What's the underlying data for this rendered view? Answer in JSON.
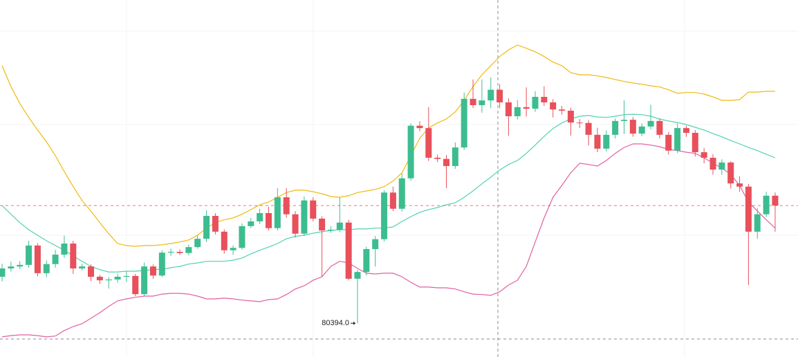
{
  "chart_data": {
    "type": "candlestick",
    "ylim": [
      79540,
      88570
    ],
    "up_color": "#3dbd8f",
    "down_color": "#e8505b",
    "open": [
      81570,
      81780,
      81830,
      81870,
      82360,
      81660,
      81890,
      82130,
      82410,
      81780,
      81830,
      81570,
      81480,
      81500,
      81570,
      81590,
      81130,
      81830,
      81600,
      82180,
      82200,
      82170,
      82320,
      82530,
      83110,
      82710,
      82240,
      82300,
      82850,
      82970,
      83180,
      82800,
      83580,
      83150,
      82660,
      83500,
      83040,
      82740,
      82760,
      82940,
      81520,
      81690,
      82270,
      82520,
      83700,
      83290,
      84060,
      85390,
      85330,
      84580,
      84550,
      84370,
      84840,
      86070,
      85910,
      86030,
      86300,
      85980,
      85630,
      85860,
      85820,
      86120,
      85980,
      85800,
      85770,
      85470,
      85460,
      85160,
      84810,
      85160,
      85510,
      85540,
      85190,
      85370,
      85510,
      85160,
      84760,
      85330,
      85210,
      84720,
      84580,
      84280,
      84460,
      83930,
      83850,
      82710,
      83150,
      83620
    ],
    "high": [
      81900,
      81950,
      81960,
      82480,
      82420,
      81980,
      82250,
      82610,
      82480,
      81900,
      81880,
      81620,
      81560,
      81650,
      81700,
      81640,
      81930,
      81880,
      82240,
      82280,
      82260,
      82380,
      82620,
      83250,
      83180,
      82770,
      82360,
      82920,
      83060,
      83290,
      83340,
      83810,
      83810,
      83230,
      83600,
      83580,
      83100,
      82850,
      83580,
      83010,
      81740,
      82330,
      82600,
      83760,
      83850,
      84180,
      85450,
      85500,
      85860,
      84660,
      84650,
      84970,
      86230,
      86560,
      86560,
      86610,
      86440,
      86080,
      86040,
      86360,
      86260,
      86390,
      86060,
      85890,
      85850,
      85560,
      85530,
      85340,
      85270,
      85570,
      86030,
      85610,
      85450,
      85920,
      85570,
      85230,
      85450,
      85390,
      85280,
      84830,
      84670,
      84540,
      84490,
      84110,
      83920,
      83310,
      83720,
      83700
    ],
    "low": [
      81450,
      81700,
      81760,
      81800,
      81580,
      81560,
      81800,
      82050,
      81640,
      81730,
      81460,
      81390,
      81270,
      81420,
      81440,
      81080,
      81080,
      81520,
      81560,
      82100,
      82120,
      82110,
      82280,
      82450,
      82640,
      82150,
      82130,
      82260,
      82800,
      82900,
      82740,
      82740,
      83060,
      82560,
      82600,
      82970,
      81570,
      82680,
      82700,
      81480,
      80394,
      81600,
      81830,
      82460,
      83230,
      83220,
      84000,
      85250,
      84500,
      84470,
      83810,
      84300,
      84780,
      85840,
      85720,
      85840,
      85830,
      85140,
      85550,
      85620,
      85740,
      85890,
      85600,
      85670,
      85140,
      85330,
      84890,
      84720,
      84740,
      85070,
      85180,
      85110,
      85130,
      85300,
      85070,
      84660,
      84700,
      85110,
      84610,
      84440,
      84150,
      84150,
      83800,
      83720,
      81360,
      82530,
      83080,
      82710
    ],
    "close": [
      81780,
      81830,
      81870,
      82360,
      81660,
      81890,
      82130,
      82410,
      81780,
      81830,
      81570,
      81480,
      81500,
      81570,
      81590,
      81130,
      81830,
      81600,
      82180,
      82200,
      82170,
      82320,
      82530,
      83110,
      82710,
      82240,
      82300,
      82850,
      82970,
      83180,
      82800,
      83580,
      83150,
      82660,
      83500,
      83040,
      82740,
      82760,
      82940,
      81520,
      81690,
      82270,
      82520,
      83700,
      83290,
      84060,
      85390,
      85330,
      84580,
      84550,
      84370,
      84840,
      86070,
      85910,
      86030,
      86300,
      85980,
      85630,
      85860,
      85820,
      86120,
      85980,
      85800,
      85770,
      85470,
      85460,
      85160,
      84810,
      85160,
      85510,
      85540,
      85190,
      85370,
      85510,
      85160,
      84760,
      85330,
      85210,
      84720,
      84580,
      84280,
      84460,
      83930,
      83850,
      82710,
      83150,
      83620,
      83370
    ],
    "series": [
      {
        "color": "#f0b90b",
        "values": [
          86910,
          86380,
          85950,
          85600,
          85280,
          84980,
          84630,
          84230,
          83850,
          83500,
          83230,
          82940,
          82660,
          82410,
          82360,
          82340,
          82360,
          82360,
          82380,
          82410,
          82450,
          82500,
          82620,
          82800,
          82940,
          83010,
          83060,
          83150,
          83270,
          83390,
          83460,
          83580,
          83700,
          83760,
          83760,
          83720,
          83670,
          83600,
          83580,
          83620,
          83700,
          83740,
          83780,
          83850,
          83990,
          84200,
          84630,
          85070,
          85330,
          85460,
          85560,
          85740,
          86030,
          86380,
          86680,
          86910,
          87140,
          87310,
          87430,
          87350,
          87260,
          87140,
          87000,
          86910,
          86730,
          86680,
          86680,
          86650,
          86610,
          86560,
          86510,
          86470,
          86440,
          86400,
          86370,
          86300,
          86210,
          86230,
          86230,
          86190,
          86120,
          86030,
          86030,
          86050,
          86240,
          86240,
          86260,
          86260
        ]
      },
      {
        "color": "#4fd1b5",
        "values": [
          83370,
          83150,
          82940,
          82760,
          82620,
          82480,
          82360,
          82240,
          82100,
          81960,
          81830,
          81750,
          81690,
          81690,
          81710,
          81710,
          81730,
          81750,
          81760,
          81800,
          81830,
          81890,
          81920,
          81960,
          81960,
          81960,
          81990,
          82040,
          82150,
          82240,
          82320,
          82410,
          82530,
          82590,
          82620,
          82670,
          82710,
          82740,
          82760,
          82760,
          82780,
          82780,
          82800,
          82800,
          82830,
          82970,
          83090,
          83200,
          83270,
          83320,
          83390,
          83440,
          83580,
          83740,
          83920,
          84090,
          84270,
          84410,
          84510,
          84690,
          84900,
          85120,
          85320,
          85460,
          85560,
          85630,
          85650,
          85610,
          85600,
          85630,
          85670,
          85680,
          85670,
          85630,
          85560,
          85510,
          85470,
          85420,
          85350,
          85280,
          85190,
          85110,
          85020,
          84930,
          84840,
          84760,
          84670,
          84580
        ]
      },
      {
        "color": "#e05fa0",
        "values": [
          80050,
          80080,
          80100,
          80100,
          80080,
          80050,
          80070,
          80210,
          80310,
          80380,
          80520,
          80660,
          80820,
          80960,
          81010,
          81050,
          81080,
          81080,
          81130,
          81150,
          81150,
          81130,
          81080,
          81010,
          81010,
          81030,
          81010,
          80980,
          80960,
          80940,
          80990,
          81010,
          81120,
          81260,
          81340,
          81480,
          81570,
          81830,
          81960,
          81920,
          81780,
          81660,
          81640,
          81660,
          81660,
          81570,
          81430,
          81310,
          81310,
          81290,
          81290,
          81260,
          81190,
          81130,
          81120,
          81100,
          81190,
          81360,
          81480,
          81830,
          82450,
          83060,
          83580,
          83880,
          84200,
          84440,
          84410,
          84370,
          84510,
          84690,
          84840,
          84930,
          84930,
          84900,
          84860,
          84790,
          84760,
          84720,
          84690,
          84580,
          84440,
          84320,
          84160,
          83880,
          83460,
          83230,
          83010,
          82800
        ]
      }
    ],
    "annotation": {
      "value": 80394,
      "label": "80394.0"
    }
  }
}
